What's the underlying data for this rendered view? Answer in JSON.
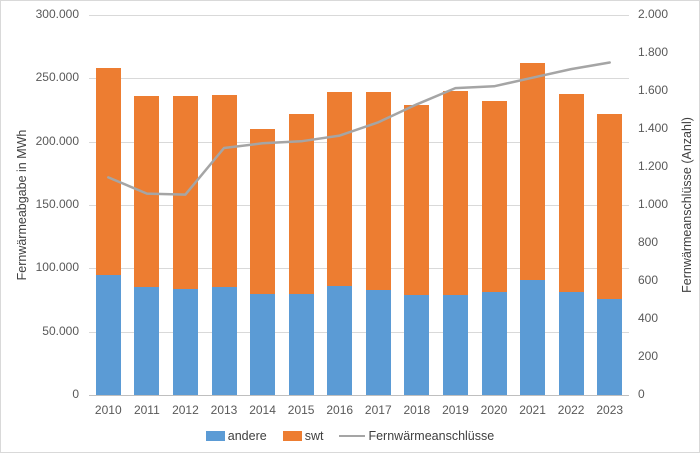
{
  "chart_data": {
    "type": "bar",
    "subtype": "stacked-bars-with-line-combo",
    "title": "",
    "categories": [
      "2010",
      "2011",
      "2012",
      "2013",
      "2014",
      "2015",
      "2016",
      "2017",
      "2018",
      "2019",
      "2020",
      "2021",
      "2022",
      "2023"
    ],
    "series": [
      {
        "name": "andere",
        "type": "bar",
        "stacked": true,
        "axis": "left",
        "color": "#5b9bd5",
        "values": [
          95000,
          85000,
          84000,
          85000,
          80000,
          80000,
          86000,
          83000,
          79000,
          79000,
          81000,
          91000,
          81000,
          76000
        ]
      },
      {
        "name": "swt",
        "type": "bar",
        "stacked": true,
        "axis": "left",
        "color": "#ed7d31",
        "values": [
          163000,
          151000,
          152000,
          152000,
          130000,
          142000,
          153000,
          156000,
          150000,
          161000,
          151000,
          171000,
          157000,
          146000
        ]
      },
      {
        "name": "Fernwärmeanschlüsse",
        "type": "line",
        "axis": "right",
        "color": "#a5a5a5",
        "values": [
          1145,
          1060,
          1055,
          1300,
          1325,
          1335,
          1365,
          1435,
          1530,
          1615,
          1625,
          1670,
          1715,
          1750
        ]
      }
    ],
    "stacked_totals": [
      258000,
      236000,
      236000,
      237000,
      210000,
      222000,
      239000,
      239000,
      229000,
      240000,
      232000,
      262000,
      238000,
      222000
    ],
    "left_axis": {
      "label": "Fernwärmeabgabe in MWh",
      "min": 0,
      "max": 300000,
      "step": 50000,
      "tick_labels": [
        "0",
        "50.000",
        "100.000",
        "150.000",
        "200.000",
        "250.000",
        "300.000"
      ]
    },
    "right_axis": {
      "label": "Fernwärmeanschlüsse (Anzahl)",
      "min": 0,
      "max": 2000,
      "step": 200,
      "tick_labels": [
        "0",
        "200",
        "400",
        "600",
        "800",
        "1.000",
        "1.200",
        "1.400",
        "1.600",
        "1.800",
        "2.000"
      ]
    },
    "grid": true,
    "legend_position": "bottom",
    "colors": {
      "gridline": "#d9d9d9",
      "axis_line": "#bfbfbf",
      "tick_text": "#595959",
      "background": "#ffffff"
    }
  }
}
